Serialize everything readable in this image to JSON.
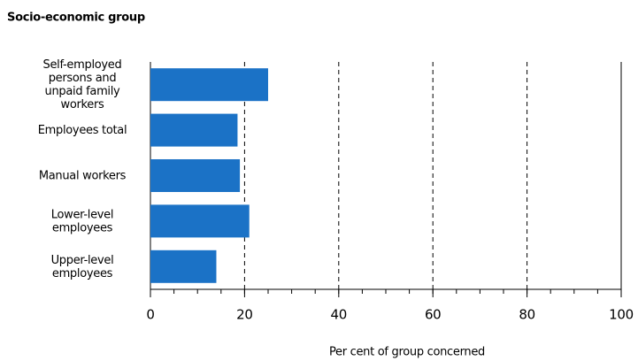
{
  "chart_data": {
    "type": "barh",
    "title": "Socio-economic group",
    "categories": [
      "Self-employed\npersons and\nunpaid family\nworkers",
      "Employees total",
      "Manual workers",
      "Lower-level\nemployees",
      "Upper-level\nemployees"
    ],
    "values": [
      25,
      18.5,
      19,
      21,
      14
    ],
    "color": "#1b72c6",
    "xlabel": "Per cent of group concerned",
    "xlim": [
      0,
      100
    ],
    "xticks": [
      0,
      20,
      40,
      60,
      80,
      100
    ],
    "grid": "dashed"
  }
}
